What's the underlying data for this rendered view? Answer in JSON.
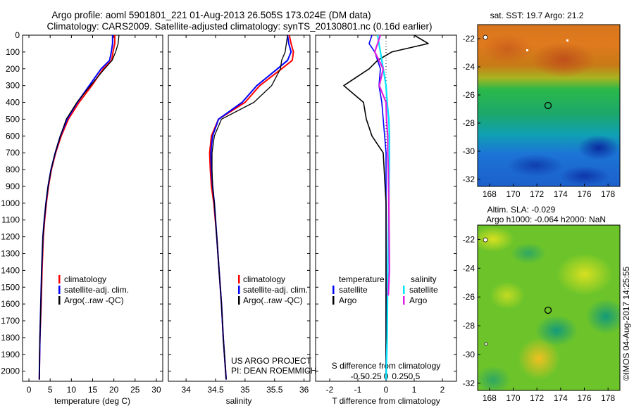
{
  "header": {
    "line1": "Argo profile: aoml 5901801_221 01-Aug-2013 26.505S 173.024E (DM data)",
    "line2": "Climatology: CARS2009. Satellite-adjusted climatology: synTS_20130801.nc (0.16d earlier)"
  },
  "depth_ticks": [
    0,
    100,
    200,
    300,
    400,
    500,
    600,
    700,
    800,
    900,
    1000,
    1100,
    1200,
    1300,
    1400,
    1500,
    1600,
    1700,
    1800,
    1900,
    2000
  ],
  "panel_temperature": {
    "xlabel": "temperature (deg C)",
    "xticks": [
      0,
      5,
      10,
      15,
      20,
      25,
      30
    ],
    "legend": [
      "climatology",
      "satellite-adj. clim.",
      "Argo(..raw -QC)"
    ]
  },
  "panel_salinity": {
    "xlabel": "salinity",
    "xticks": [
      "34",
      "34.5",
      "35",
      "35.5",
      "36"
    ],
    "legend": [
      "climatology",
      "satellite-adj. clim.",
      "Argo(..raw -QC)"
    ],
    "credit1": "US ARGO PROJECT",
    "credit2": "PI: DEAN ROEMMICH"
  },
  "panel_diff": {
    "xlabel": "T difference from climatology",
    "top_label": "S difference from climatology",
    "top_ticks": [
      "-0.5",
      "-0.25",
      "0",
      "0.25",
      "0.5"
    ],
    "xticks": [
      "-2",
      "-1",
      "0",
      "1",
      "2"
    ],
    "legend_t_title": "temperature",
    "legend_s_title": "salinity",
    "legend_t": [
      "satellite",
      "Argo"
    ],
    "legend_s": [
      "satellite",
      "Argo"
    ]
  },
  "map_sst": {
    "title": "sat. SST: 19.7 Argo: 21.2",
    "yticks": [
      "-22",
      "-24",
      "-26",
      "-28",
      "-30",
      "-32"
    ],
    "xticks": [
      "168",
      "170",
      "172",
      "174",
      "176",
      "178"
    ]
  },
  "map_sla": {
    "title1": "Altim. SLA: -0.029",
    "title2": "Argo h1000: -0.064 h2000: NaN",
    "yticks": [
      "-22",
      "-24",
      "-26",
      "-28",
      "-30",
      "-32"
    ],
    "xticks": [
      "168",
      "170",
      "172",
      "174",
      "176",
      "178"
    ]
  },
  "side_note": "©IMOS 04-Aug-2017 14:25:55",
  "colors": {
    "climatology": "#ff0000",
    "satellite": "#0000ff",
    "argo": "#000000",
    "sat_salinity": "#00e5ff",
    "argo_salinity": "#e020e0"
  },
  "chart_data": [
    {
      "type": "line",
      "title": "",
      "xlabel": "temperature (deg C)",
      "ylabel": "",
      "xlim": [
        -1.5,
        31.5
      ],
      "ylim": [
        2060,
        0
      ],
      "series": [
        {
          "name": "climatology",
          "x": [
            20.2,
            20.2,
            19.8,
            19.5,
            17.5,
            14.8,
            11.8,
            9.3,
            7.6,
            6.3,
            5.3,
            4.6,
            4.1,
            3.7,
            3.4,
            3.1,
            2.9,
            2.6,
            2.5,
            2.45
          ],
          "y": [
            0,
            50,
            100,
            150,
            200,
            300,
            400,
            500,
            600,
            700,
            800,
            900,
            1000,
            1100,
            1200,
            1400,
            1600,
            1800,
            1950,
            2050
          ]
        },
        {
          "name": "satellite-adj. clim.",
          "x": [
            19.7,
            19.7,
            19.4,
            19.0,
            17.0,
            14.2,
            11.4,
            9.0,
            7.4,
            6.2,
            5.2,
            4.5,
            4.0,
            3.6,
            3.3,
            3.0,
            2.8,
            2.6,
            2.5,
            2.45
          ],
          "y": [
            0,
            50,
            100,
            150,
            200,
            300,
            400,
            500,
            600,
            700,
            800,
            900,
            1000,
            1100,
            1200,
            1400,
            1600,
            1800,
            1950,
            2050
          ]
        },
        {
          "name": "Argo(..raw -QC)",
          "x": [
            21.2,
            21.0,
            20.4,
            19.6,
            17.8,
            14.5,
            11.3,
            8.8,
            7.4,
            6.2,
            5.2,
            4.5,
            4.0,
            3.6,
            3.3,
            3.0,
            2.8,
            2.6,
            2.5,
            2.45
          ],
          "y": [
            0,
            50,
            100,
            150,
            200,
            300,
            400,
            500,
            600,
            700,
            800,
            900,
            1000,
            1100,
            1200,
            1400,
            1600,
            1800,
            1950,
            2050
          ]
        }
      ]
    },
    {
      "type": "line",
      "title": "",
      "xlabel": "salinity",
      "ylabel": "",
      "xlim": [
        33.7,
        36.1
      ],
      "ylim": [
        2060,
        0
      ],
      "series": [
        {
          "name": "climatology",
          "x": [
            35.75,
            35.78,
            35.82,
            35.8,
            35.62,
            35.25,
            35.0,
            34.55,
            34.43,
            34.4,
            34.41,
            34.43,
            34.47,
            34.52,
            34.56,
            34.6,
            34.63,
            34.66,
            34.68
          ],
          "y": [
            0,
            50,
            100,
            150,
            200,
            300,
            400,
            500,
            600,
            700,
            800,
            900,
            1000,
            1200,
            1400,
            1600,
            1800,
            1950,
            2050
          ]
        },
        {
          "name": "satellite-adj. clim.",
          "x": [
            35.72,
            35.74,
            35.78,
            35.72,
            35.55,
            35.2,
            34.95,
            34.55,
            34.45,
            34.42,
            34.43,
            34.45,
            34.48,
            34.52,
            34.56,
            34.6,
            34.63,
            34.66,
            34.68
          ],
          "y": [
            0,
            50,
            100,
            150,
            200,
            300,
            400,
            500,
            600,
            700,
            800,
            900,
            1000,
            1200,
            1400,
            1600,
            1800,
            1950,
            2050
          ]
        },
        {
          "name": "Argo(..raw -QC)",
          "x": [
            35.72,
            35.7,
            35.68,
            35.62,
            35.6,
            35.45,
            35.15,
            34.6,
            34.48,
            34.44,
            34.44,
            34.45,
            34.48,
            34.52,
            34.56,
            34.6,
            34.63,
            34.66,
            34.68
          ],
          "y": [
            0,
            50,
            100,
            150,
            200,
            300,
            400,
            500,
            600,
            700,
            800,
            900,
            1000,
            1200,
            1400,
            1600,
            1800,
            1950,
            2050
          ]
        }
      ]
    },
    {
      "type": "line",
      "title": "",
      "xlabel": "T difference from climatology",
      "ylabel": "",
      "xlim": [
        -2.5,
        2.5
      ],
      "ylim": [
        2060,
        0
      ],
      "series": [
        {
          "name": "temperature satellite",
          "x": [
            -0.5,
            -0.6,
            -0.4,
            -0.3,
            -0.2,
            -0.25,
            -0.15,
            -0.1,
            -0.05,
            0.0,
            0.0,
            0.0,
            0.0
          ],
          "y": [
            0,
            50,
            100,
            150,
            200,
            300,
            400,
            500,
            600,
            700,
            1000,
            1500,
            2050
          ]
        },
        {
          "name": "temperature Argo",
          "x": [
            1.0,
            1.5,
            0.2,
            -0.3,
            -0.6,
            -1.5,
            -0.8,
            -0.7,
            -0.5,
            -0.1,
            0.0,
            0.0,
            0.0
          ],
          "y": [
            0,
            50,
            100,
            150,
            200,
            300,
            400,
            500,
            600,
            700,
            1000,
            1500,
            2050
          ]
        },
        {
          "name": "salinity satellite",
          "x": [
            -0.15,
            -0.1,
            -0.05,
            0.0,
            0.02,
            0.05,
            0.06,
            0.06,
            0.05,
            0.03,
            0.02,
            0.0
          ],
          "y": [
            0,
            100,
            200,
            300,
            400,
            500,
            600,
            700,
            1000,
            1400,
            1800,
            2050
          ]
        },
        {
          "name": "salinity Argo",
          "x": [
            -0.1,
            -0.2,
            -0.05,
            -0.12,
            0.0,
            0.01,
            0.03,
            0.03,
            0.04,
            0.05,
            0.06,
            0.04
          ],
          "y": [
            0,
            100,
            200,
            300,
            400,
            500,
            600,
            700,
            800,
            1000,
            1400,
            1550
          ]
        }
      ]
    }
  ]
}
